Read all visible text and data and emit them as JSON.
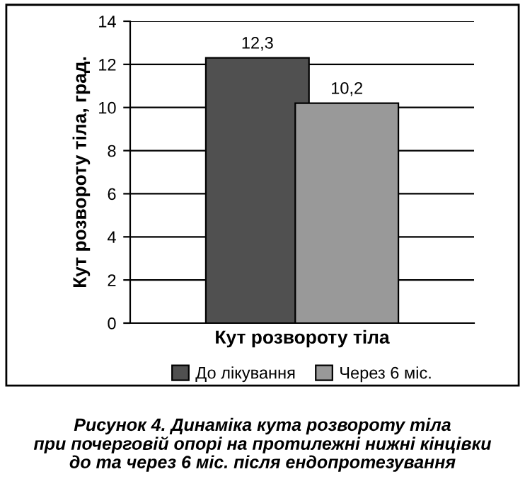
{
  "chart_data": {
    "type": "bar",
    "ylabel": "Кут розвороту тіла, град.",
    "categories": [
      "Кут розвороту тіла"
    ],
    "series": [
      {
        "name": "До лікування",
        "color": "#505050",
        "values": [
          12.3
        ],
        "value_labels": [
          "12,3"
        ]
      },
      {
        "name": "Через 6 міс.",
        "color": "#999999",
        "values": [
          10.2
        ],
        "value_labels": [
          "10,2"
        ]
      }
    ],
    "ylim": [
      0,
      14
    ],
    "yticks": [
      0,
      2,
      4,
      6,
      8,
      10,
      12,
      14
    ],
    "grid": "y",
    "legend": "bottom",
    "annotations": [
      "Рисунок 4. Динаміка кута розвороту тіла\nпри почерговій опорі на протилежні нижні кінцівки\nдо та через 6 міс. після ендопротезування"
    ]
  }
}
